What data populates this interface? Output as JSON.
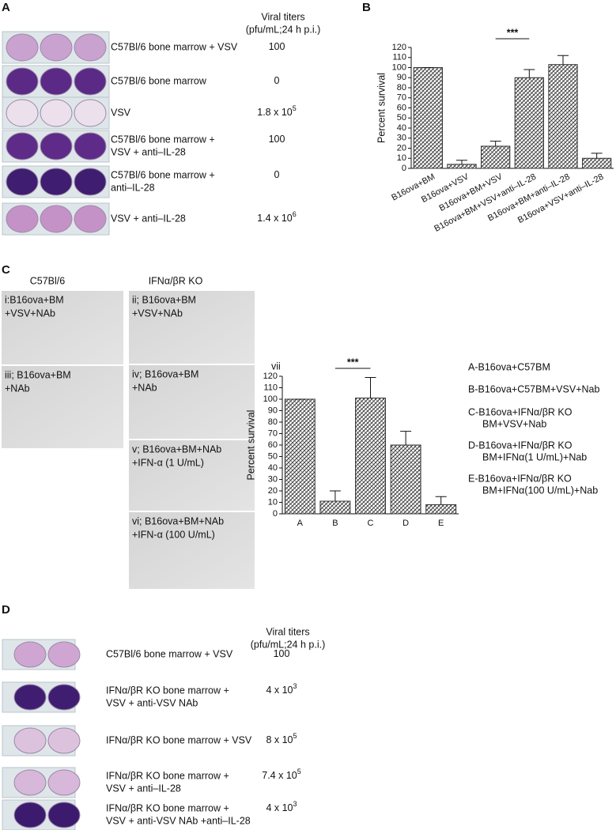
{
  "panel_a": {
    "label": "A",
    "header": [
      "Viral titers",
      "(pfu/mL;24 h p.i.)"
    ],
    "rows": [
      {
        "lines": [
          "C57Bl/6 bone marrow + VSV"
        ],
        "titer": {
          "text": "100"
        }
      },
      {
        "lines": [
          "C57Bl/6 bone marrow"
        ],
        "titer": {
          "text": "0"
        }
      },
      {
        "lines": [
          "VSV"
        ],
        "titer": {
          "text": "1.8 x 10",
          "sup": "5"
        }
      },
      {
        "lines": [
          "C57Bl/6 bone marrow +",
          "VSV + anti–IL-28"
        ],
        "titer": {
          "text": "100"
        }
      },
      {
        "lines": [
          "C57Bl/6 bone marrow +",
          "anti–IL-28"
        ],
        "titer": {
          "text": "0"
        }
      },
      {
        "lines": [
          "VSV + anti–IL-28"
        ],
        "titer": {
          "text": "1.4 x 10",
          "sup": "6"
        }
      }
    ]
  },
  "chart_data": [
    {
      "type": "bar",
      "panel": "B",
      "ylabel": "Percent survival",
      "categories": [
        "B16ova+BM",
        "B16ova+VSV",
        "B16ova+BM+VSV",
        "B16ova+BM+VSV+anti–IL-28",
        "B16ova+BM+anti–IL-28",
        "B16ova+VSV+anti–IL-28"
      ],
      "values": [
        100,
        4,
        22,
        90,
        103,
        10
      ],
      "errors": [
        0,
        4,
        5,
        8,
        9,
        5
      ],
      "ylim": [
        0,
        120
      ],
      "yticks": [
        0,
        10,
        20,
        30,
        40,
        50,
        60,
        70,
        80,
        90,
        100,
        110,
        120
      ],
      "color": "#333333",
      "significance": "***"
    },
    {
      "type": "bar",
      "label": "vii",
      "ylabel": "Percent survival",
      "categories": [
        "A",
        "B",
        "C",
        "D",
        "E"
      ],
      "values": [
        100,
        11,
        101,
        60,
        8
      ],
      "errors": [
        0,
        9,
        18,
        12,
        7
      ],
      "ylim": [
        0,
        120
      ],
      "yticks": [
        0,
        10,
        20,
        30,
        40,
        50,
        60,
        70,
        80,
        90,
        100,
        110,
        120
      ],
      "color": "#333333",
      "significance": "***",
      "legend_notes": [
        [
          "A-B16ova+C57BM"
        ],
        [
          "B-B16ova+C57BM+VSV+Nab"
        ],
        [
          "C-B16ova+IFNα/βR KO",
          "BM+VSV+Nab"
        ],
        [
          "D-B16ova+IFNα/βR KO",
          "BM+IFNα(1 U/mL)+Nab"
        ],
        [
          "E-B16ova+IFNα/βR KO",
          "BM+IFNα(100 U/mL)+Nab"
        ]
      ]
    }
  ],
  "panel_c": {
    "label": "C",
    "columns": [
      "C57Bl/6",
      "IFNα/βR KO"
    ],
    "images": [
      {
        "lines": [
          "i:B16ova+BM",
          "+VSV+NAb"
        ]
      },
      {
        "lines": [
          "iii; B16ova+BM",
          "+NAb"
        ]
      },
      {
        "lines": [
          "ii; B16ova+BM",
          "+VSV+NAb"
        ]
      },
      {
        "lines": [
          "iv; B16ova+BM",
          "+NAb"
        ]
      },
      {
        "lines": [
          "v; B16ova+BM+NAb",
          "+IFN-α (1 U/mL)"
        ]
      },
      {
        "lines": [
          "vi; B16ova+BM+NAb",
          "+IFN-α (100 U/mL)"
        ]
      }
    ]
  },
  "panel_d": {
    "label": "D",
    "header": [
      "Viral titers",
      "(pfu/mL;24 h p.i.)"
    ],
    "rows": [
      {
        "lines": [
          "C57Bl/6 bone marrow + VSV"
        ],
        "titer": {
          "text": "100"
        }
      },
      {
        "lines": [
          "IFNα/βR KO bone marrow +",
          "VSV + anti-VSV NAb"
        ],
        "titer": {
          "text": "4 x 10",
          "sup": "3"
        }
      },
      {
        "lines": [
          "IFNα/βR KO bone marrow + VSV"
        ],
        "titer": {
          "text": "8 x 10",
          "sup": "5"
        }
      },
      {
        "lines": [
          "IFNα/βR KO bone marrow +",
          "VSV + anti–IL-28"
        ],
        "titer": {
          "text": "7.4 x 10",
          "sup": "5"
        }
      },
      {
        "lines": [
          "IFNα/βR KO bone marrow +",
          "VSV + anti-VSV NAb +anti–IL-28"
        ],
        "titer": {
          "text": "4 x 10",
          "sup": "3"
        }
      }
    ]
  }
}
